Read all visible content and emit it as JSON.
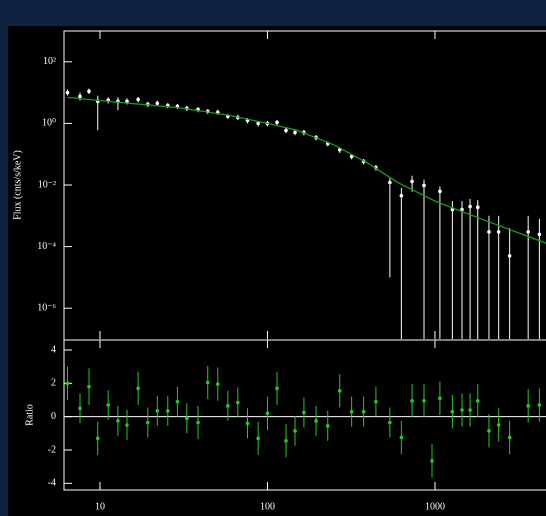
{
  "chart_data": [
    {
      "type": "flux",
      "y_label": "Flux (cnts/s/keV)",
      "log_x": true,
      "log_y": true,
      "xlim": [
        6.1,
        4600
      ],
      "ylim": [
        1e-07,
        1000
      ],
      "xticks": [
        10,
        100,
        1000
      ],
      "yticks": [
        {
          "value": 100,
          "label": "10²"
        },
        {
          "value": 1,
          "label": "10⁰"
        },
        {
          "value": 0.01,
          "label": "10⁻²"
        },
        {
          "value": 0.0001,
          "label": "10⁻⁴"
        },
        {
          "value": 1e-06,
          "label": "10⁻⁶"
        }
      ],
      "color": "#ffffff",
      "x": [
        6.4,
        7.6,
        8.6,
        9.7,
        11.2,
        12.8,
        14.5,
        16.9,
        19.3,
        22,
        25.4,
        29,
        33,
        38.5,
        44,
        50.5,
        58,
        66.5,
        76,
        88,
        100,
        114,
        129,
        146,
        165,
        195,
        229,
        270,
        318,
        375,
        444,
        538,
        630,
        730,
        860,
        1070,
        1270,
        1450,
        1620,
        1800,
        2100,
        2400,
        2790,
        3600,
        4200
      ],
      "values": [
        10,
        7.5,
        11,
        5.2,
        5.6,
        5.2,
        5.2,
        6,
        4.2,
        4.5,
        3.8,
        3.6,
        3.1,
        2.85,
        2.45,
        2.3,
        1.7,
        1.57,
        1.25,
        1.0,
        1.0,
        1.08,
        0.59,
        0.51,
        0.51,
        0.35,
        0.22,
        0.14,
        0.085,
        0.058,
        0.037,
        0.012,
        0.0045,
        0.013,
        0.0097,
        0.0062,
        0.0016,
        0.0016,
        0.002,
        0.0019,
        0.0003,
        0.0003,
        5e-05,
        0.0003,
        0.00025
      ],
      "lows": [
        8,
        5.5,
        9,
        0.6,
        4.4,
        2.7,
        4.1,
        4.8,
        3.4,
        3.6,
        3.1,
        2.9,
        2.5,
        2.3,
        2,
        1.9,
        1.4,
        1.3,
        1,
        0.8,
        0.8,
        0.87,
        0.48,
        0.41,
        0.41,
        0.28,
        0.18,
        0.11,
        0.068,
        0.046,
        0.029,
        1e-05,
        1e-07,
        0.006,
        1e-07,
        1e-07,
        1e-07,
        1e-07,
        1e-07,
        1e-07,
        1e-07,
        1e-07,
        1e-07,
        1e-07,
        1e-07
      ],
      "highs": [
        12.5,
        10,
        13.5,
        8,
        7,
        7,
        6.5,
        7.2,
        5,
        5.4,
        4.6,
        4.3,
        3.7,
        3.4,
        2.9,
        2.8,
        2,
        1.9,
        1.5,
        1.2,
        1.2,
        1.3,
        0.71,
        0.61,
        0.61,
        0.42,
        0.26,
        0.17,
        0.1,
        0.07,
        0.045,
        0.018,
        0.008,
        0.02,
        0.015,
        0.009,
        0.003,
        0.003,
        0.0035,
        0.0033,
        0.001,
        0.001,
        0.0004,
        0.001,
        0.0008
      ],
      "model": {
        "color": "#1a9a1a",
        "x": [
          6.4,
          10,
          30,
          60,
          100,
          150,
          250,
          400,
          600,
          1000,
          2000,
          4600
        ],
        "values": [
          7,
          5.5,
          3.2,
          1.8,
          1.0,
          0.6,
          0.2,
          0.05,
          0.012,
          0.003,
          0.0007,
          0.00013
        ]
      }
    },
    {
      "type": "ratio",
      "y_label": "Ratio",
      "log_x": true,
      "xlim": [
        6.1,
        4600
      ],
      "ylim": [
        -4.4,
        4.6
      ],
      "xticks": [
        10,
        100,
        1000
      ],
      "yticks": [
        4,
        2,
        0,
        -2,
        -4
      ],
      "hline": 0,
      "color": "#22cc22",
      "x": [
        6.4,
        7.6,
        8.6,
        9.7,
        11.2,
        12.8,
        14.5,
        16.9,
        19.3,
        22,
        25.4,
        29,
        33,
        38.5,
        44,
        50.5,
        58,
        66.5,
        76,
        88,
        100,
        114,
        129,
        146,
        165,
        195,
        229,
        270,
        318,
        375,
        444,
        538,
        630,
        730,
        860,
        960,
        1070,
        1270,
        1450,
        1620,
        1800,
        2100,
        2400,
        2790,
        3600,
        4200
      ],
      "values": [
        2.0,
        0.5,
        1.8,
        -1.3,
        0.7,
        -0.25,
        -0.5,
        1.7,
        -0.35,
        0.35,
        0.35,
        0.9,
        -0.1,
        -0.35,
        2.05,
        1.95,
        0.65,
        0.85,
        -0.4,
        -1.3,
        0.2,
        1.7,
        -1.45,
        -0.85,
        0.25,
        -0.25,
        -0.55,
        1.55,
        0.3,
        0.3,
        0.9,
        -0.35,
        -1.25,
        0.95,
        0.95,
        -2.65,
        1.1,
        0.3,
        0.4,
        0.4,
        0.95,
        -0.85,
        -0.5,
        -1.25,
        0.65,
        0.7
      ],
      "errors": [
        1,
        0.9,
        1.1,
        1,
        0.9,
        0.9,
        0.9,
        1,
        0.9,
        0.9,
        0.9,
        0.9,
        0.9,
        1,
        1,
        1,
        0.9,
        0.9,
        0.9,
        1,
        1,
        1,
        1,
        0.9,
        0.9,
        0.9,
        0.9,
        1,
        0.9,
        0.9,
        0.9,
        0.9,
        1,
        1,
        1,
        1,
        1,
        1,
        1,
        1,
        1,
        1,
        1,
        1,
        1,
        1
      ]
    }
  ]
}
